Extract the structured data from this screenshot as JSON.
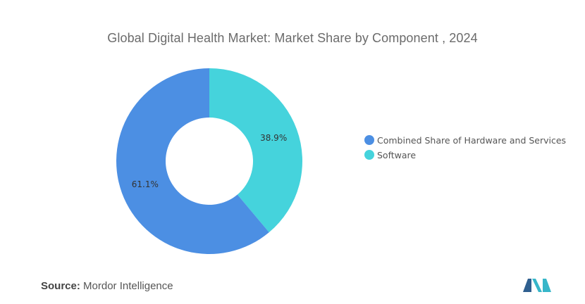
{
  "chart_data": {
    "type": "pie",
    "title": "Global Digital Health Market: Market Share by Component , 2024",
    "donut": true,
    "slices": [
      {
        "name": "Software",
        "value": 38.9,
        "label": "38.9%",
        "color": "#45d3dc"
      },
      {
        "name": "Combined Share of Hardware and Services",
        "value": 61.1,
        "label": "61.1%",
        "color": "#4c8fe3"
      }
    ],
    "legend": {
      "position": "right",
      "entries": [
        {
          "label": "Combined Share of Hardware and Services",
          "color": "#4c8fe3"
        },
        {
          "label": "Software",
          "color": "#45d3dc"
        }
      ]
    }
  },
  "source": {
    "label": "Source:",
    "text": "Mordor Intelligence"
  },
  "logo": {
    "icon": "mordor-intelligence-logo-icon",
    "colors": [
      "#2f5f8f",
      "#37b6c9"
    ]
  }
}
